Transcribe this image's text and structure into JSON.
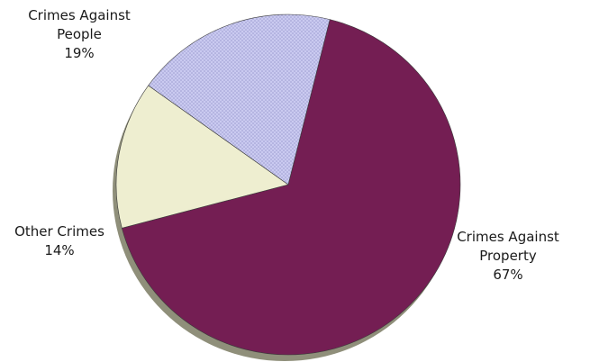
{
  "chart_data": {
    "type": "pie",
    "title": "",
    "slices": [
      {
        "label_lines": [
          "Crimes Against",
          "Property",
          "67%"
        ],
        "name": "Crimes Against Property",
        "value": 67,
        "color": "#741e53",
        "pattern": "none"
      },
      {
        "label_lines": [
          "Other Crimes",
          "14%"
        ],
        "name": "Other Crimes",
        "value": 14,
        "color": "#eeeed0",
        "pattern": "none"
      },
      {
        "label_lines": [
          "Crimes Against",
          "People",
          "19%"
        ],
        "name": "Crimes Against People",
        "value": 19,
        "color": "#cacaf0",
        "pattern": "dotted"
      }
    ],
    "start_angle_deg": 14,
    "direction": "clockwise",
    "style": "3d-tilted-with-shadow"
  }
}
